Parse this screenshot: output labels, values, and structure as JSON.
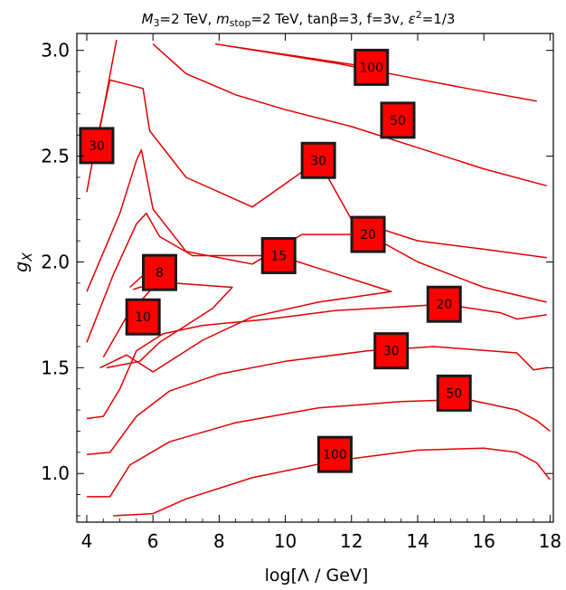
{
  "chart_data": {
    "type": "contour",
    "title": {
      "text": "M3=2 TeV, mstop=2 TeV, tanβ=3, f=3v, ε2=1/3",
      "segments": [
        {
          "t": "M",
          "style": "italic"
        },
        {
          "t": "3",
          "style": "sub"
        },
        {
          "t": "=2 TeV, "
        },
        {
          "t": "m",
          "style": "italic"
        },
        {
          "t": "stop",
          "style": "sub"
        },
        {
          "t": "=2 TeV, tanβ=3, f=3v, "
        },
        {
          "t": "ε",
          "style": "italic"
        },
        {
          "t": "2",
          "style": "sup"
        },
        {
          "t": "=1/3"
        }
      ]
    },
    "xlabel": "log[Λ / GeV]",
    "ylabel": {
      "main": "g",
      "sub": "X"
    },
    "xlim": [
      3.7,
      18.1
    ],
    "ylim": [
      0.77,
      3.08
    ],
    "xticks": [
      {
        "value": 4,
        "label": "4"
      },
      {
        "value": 6,
        "label": "6"
      },
      {
        "value": 8,
        "label": "8"
      },
      {
        "value": 10,
        "label": "10"
      },
      {
        "value": 12,
        "label": "12"
      },
      {
        "value": 14,
        "label": "14"
      },
      {
        "value": 16,
        "label": "16"
      },
      {
        "value": 18,
        "label": "18"
      }
    ],
    "yticks": [
      {
        "value": 1.0,
        "label": "1.0"
      },
      {
        "value": 1.5,
        "label": "1.5"
      },
      {
        "value": 2.0,
        "label": "2.0"
      },
      {
        "value": 2.5,
        "label": "2.5"
      },
      {
        "value": 3.0,
        "label": "3.0"
      }
    ],
    "line_color": "#e00000",
    "label_color": "#ff0000",
    "contours": [
      {
        "level": "100",
        "points": [
          [
            12.6,
            2.92
          ],
          [
            7.9,
            3.03
          ],
          [
            9.5,
            2.99
          ],
          [
            11.5,
            2.94
          ],
          [
            13.5,
            2.88
          ],
          [
            15.5,
            2.82
          ],
          [
            17.6,
            2.76
          ]
        ]
      },
      {
        "level": "50",
        "points": [
          [
            6.0,
            3.03
          ],
          [
            7.0,
            2.89
          ],
          [
            8.5,
            2.79
          ],
          [
            10.0,
            2.72
          ],
          [
            12.0,
            2.64
          ],
          [
            14.0,
            2.54
          ],
          [
            16.0,
            2.44
          ],
          [
            17.9,
            2.36
          ]
        ]
      },
      {
        "level": "30",
        "points": [
          [
            4.2,
            2.54
          ],
          [
            4.3,
            2.55
          ],
          [
            4.9,
            3.05
          ]
        ]
      },
      {
        "level": "30",
        "points": [
          [
            4.0,
            2.33
          ],
          [
            4.2,
            2.5
          ],
          [
            4.7,
            2.86
          ],
          [
            5.7,
            2.82
          ],
          [
            5.9,
            2.62
          ],
          [
            7.0,
            2.4
          ],
          [
            9.0,
            2.26
          ],
          [
            11.0,
            2.48
          ],
          [
            12.0,
            2.2
          ],
          [
            14.0,
            2.1
          ],
          [
            16.0,
            2.06
          ],
          [
            17.9,
            2.02
          ]
        ]
      },
      {
        "level": "20",
        "points": [
          [
            4.0,
            1.86
          ],
          [
            5.0,
            2.23
          ],
          [
            5.5,
            2.48
          ],
          [
            5.65,
            2.53
          ],
          [
            6.0,
            2.25
          ],
          [
            7.0,
            2.05
          ],
          [
            9.0,
            1.99
          ],
          [
            10.5,
            2.13
          ],
          [
            12.5,
            2.13
          ],
          [
            14.0,
            2.0
          ],
          [
            16.0,
            1.88
          ],
          [
            17.9,
            1.81
          ]
        ]
      },
      {
        "level": "15",
        "points": [
          [
            4.0,
            1.62
          ],
          [
            4.8,
            1.94
          ],
          [
            5.5,
            2.18
          ],
          [
            5.8,
            2.23
          ],
          [
            6.2,
            2.12
          ],
          [
            7.2,
            2.03
          ],
          [
            9.8,
            2.03
          ],
          [
            12.8,
            1.88
          ],
          [
            13.2,
            1.86
          ],
          [
            11.0,
            1.81
          ],
          [
            9.0,
            1.74
          ],
          [
            7.5,
            1.63
          ],
          [
            6.0,
            1.48
          ],
          [
            5.2,
            1.56
          ],
          [
            4.4,
            1.5
          ]
        ]
      },
      {
        "level": "10",
        "points": [
          [
            4.5,
            1.55
          ],
          [
            5.2,
            1.74
          ],
          [
            6.0,
            1.88
          ],
          [
            6.6,
            1.9
          ],
          [
            8.4,
            1.88
          ],
          [
            7.8,
            1.78
          ],
          [
            7.0,
            1.7
          ],
          [
            6.2,
            1.62
          ],
          [
            5.6,
            1.53
          ],
          [
            4.6,
            1.5
          ]
        ]
      },
      {
        "level": "8",
        "points": [
          [
            5.3,
            1.88
          ],
          [
            6.0,
            1.98
          ],
          [
            6.4,
            2.0
          ],
          [
            6.6,
            1.93
          ],
          [
            6.2,
            1.9
          ],
          [
            5.6,
            1.88
          ],
          [
            5.4,
            1.87
          ]
        ]
      },
      {
        "level": "20",
        "points": [
          [
            4.0,
            1.26
          ],
          [
            4.5,
            1.27
          ],
          [
            5.0,
            1.4
          ],
          [
            5.5,
            1.58
          ],
          [
            6.3,
            1.66
          ],
          [
            7.5,
            1.7
          ],
          [
            9.5,
            1.73
          ],
          [
            11.5,
            1.77
          ],
          [
            14.8,
            1.8
          ],
          [
            16.5,
            1.76
          ],
          [
            17.0,
            1.73
          ],
          [
            17.9,
            1.75
          ]
        ]
      },
      {
        "level": "30",
        "points": [
          [
            4.0,
            1.09
          ],
          [
            4.7,
            1.1
          ],
          [
            5.5,
            1.27
          ],
          [
            6.5,
            1.39
          ],
          [
            8.0,
            1.47
          ],
          [
            10.0,
            1.53
          ],
          [
            12.5,
            1.58
          ],
          [
            14.5,
            1.6
          ],
          [
            17.0,
            1.57
          ],
          [
            17.5,
            1.49
          ],
          [
            17.9,
            1.5
          ]
        ]
      },
      {
        "level": "50",
        "points": [
          [
            4.0,
            0.89
          ],
          [
            4.7,
            0.89
          ],
          [
            5.3,
            1.04
          ],
          [
            6.5,
            1.15
          ],
          [
            8.5,
            1.24
          ],
          [
            11.0,
            1.31
          ],
          [
            13.5,
            1.34
          ],
          [
            15.5,
            1.35
          ],
          [
            17.0,
            1.3
          ],
          [
            17.6,
            1.25
          ],
          [
            18.0,
            1.2
          ]
        ]
      },
      {
        "level": "100",
        "points": [
          [
            4.8,
            0.8
          ],
          [
            6.0,
            0.81
          ],
          [
            7.0,
            0.88
          ],
          [
            9.0,
            0.98
          ],
          [
            11.5,
            1.06
          ],
          [
            14.0,
            1.11
          ],
          [
            16.0,
            1.12
          ],
          [
            17.0,
            1.1
          ],
          [
            17.6,
            1.05
          ],
          [
            18.0,
            0.97
          ]
        ]
      }
    ],
    "labels": [
      {
        "text": "100",
        "x": 12.6,
        "y": 2.92
      },
      {
        "text": "50",
        "x": 13.4,
        "y": 2.67
      },
      {
        "text": "30",
        "x": 4.3,
        "y": 2.55
      },
      {
        "text": "30",
        "x": 11.0,
        "y": 2.48
      },
      {
        "text": "20",
        "x": 12.5,
        "y": 2.13
      },
      {
        "text": "15",
        "x": 9.8,
        "y": 2.03
      },
      {
        "text": "8",
        "x": 6.2,
        "y": 1.95
      },
      {
        "text": "10",
        "x": 5.7,
        "y": 1.74
      },
      {
        "text": "20",
        "x": 14.8,
        "y": 1.8
      },
      {
        "text": "30",
        "x": 13.2,
        "y": 1.58
      },
      {
        "text": "50",
        "x": 15.1,
        "y": 1.38
      },
      {
        "text": "100",
        "x": 11.5,
        "y": 1.09
      }
    ]
  }
}
